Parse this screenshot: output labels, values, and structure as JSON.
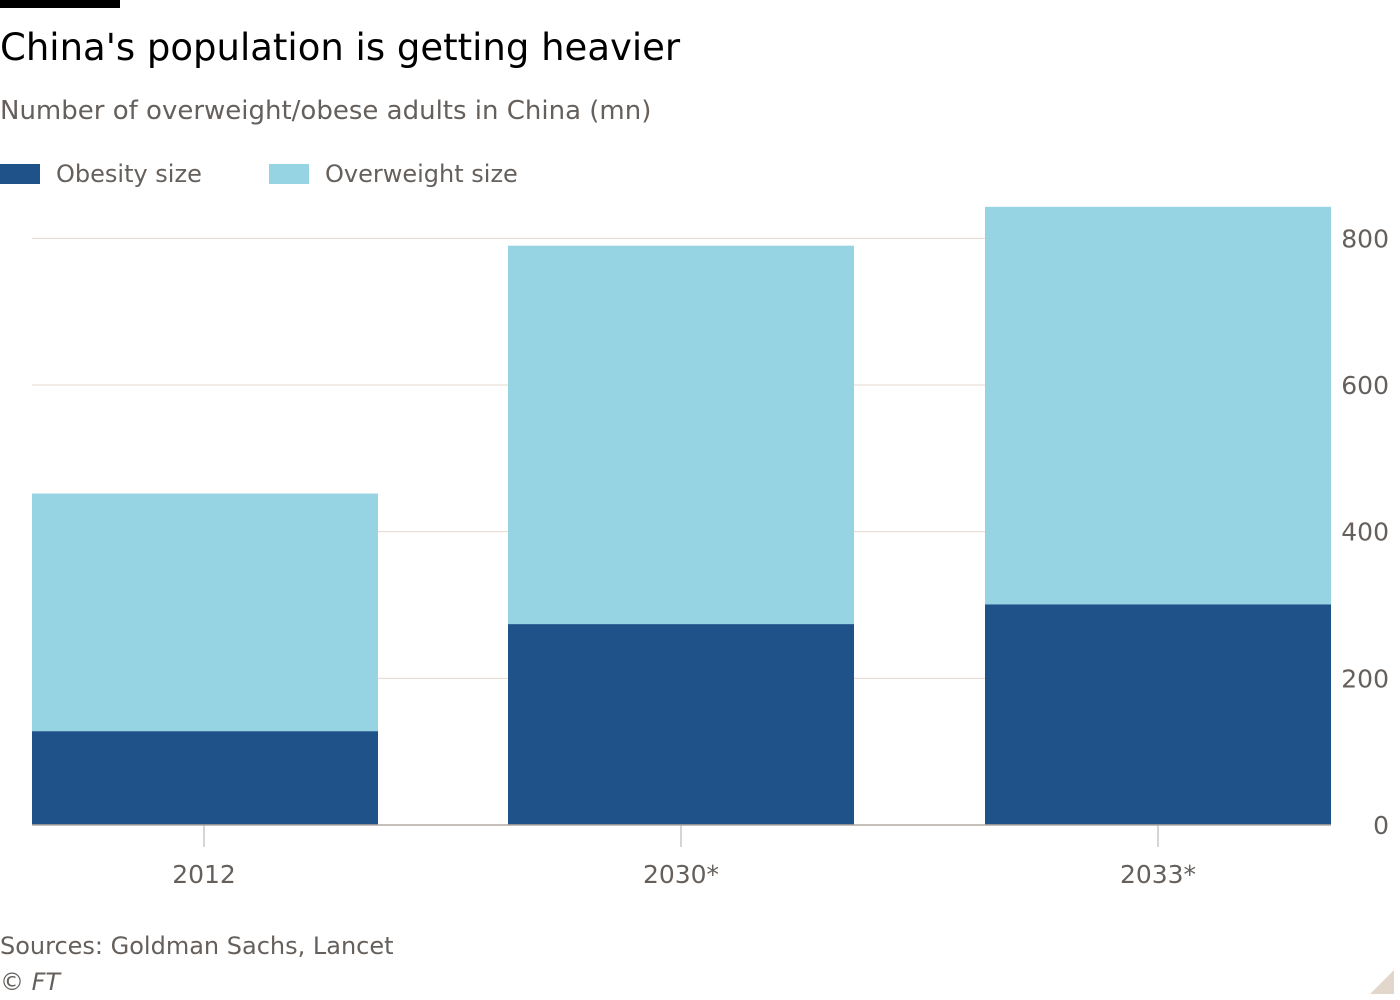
{
  "header": {
    "title": "China's population is getting heavier",
    "subtitle": "Number of overweight/obese adults in China (mn)"
  },
  "legend": [
    {
      "label": "Obesity size",
      "color": "#1f5289"
    },
    {
      "label": "Overweight size",
      "color": "#96d3e3"
    }
  ],
  "chart_data": {
    "type": "bar",
    "stacked": true,
    "categories": [
      "2012",
      "2030*",
      "2033*"
    ],
    "series": [
      {
        "name": "Obesity size",
        "color": "#1f5289",
        "values": [
          128,
          274,
          301
        ]
      },
      {
        "name": "Overweight size",
        "color": "#96d3e3",
        "values": [
          324,
          516,
          542
        ]
      }
    ],
    "title": "China's population is getting heavier",
    "subtitle": "Number of overweight/obese adults in China (mn)",
    "xlabel": "",
    "ylabel": "",
    "ylim": [
      0,
      843
    ],
    "yticks": [
      0,
      200,
      400,
      600,
      800
    ],
    "y_axis_side": "right",
    "grid": true,
    "legend_position": "top-left"
  },
  "footer": {
    "source": "Sources: Goldman Sachs, Lancet",
    "credit": "© FT"
  },
  "colors": {
    "obesity": "#1f5289",
    "overweight": "#96d3e3",
    "gridline": "#e6d9ce",
    "axis": "#b3a9a0",
    "text": "#66605c",
    "corner": "#e3d6cb"
  }
}
